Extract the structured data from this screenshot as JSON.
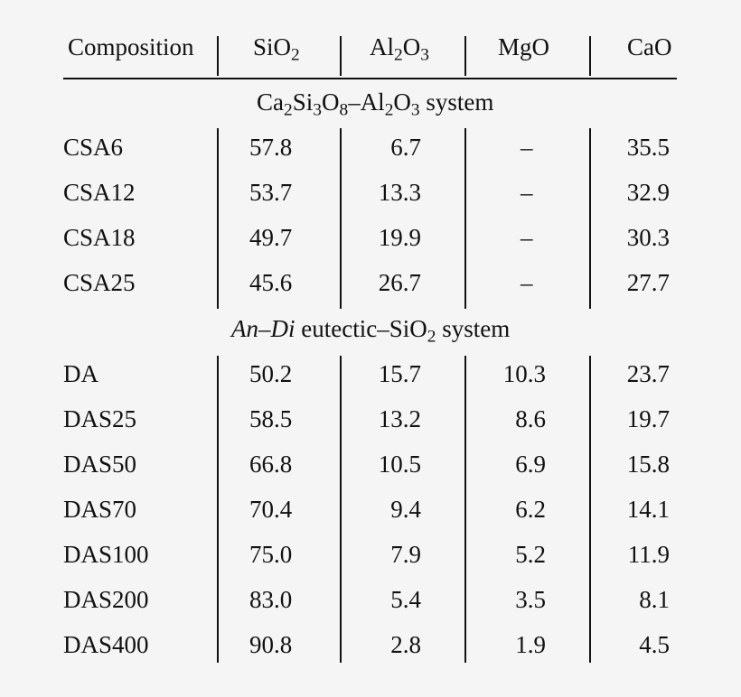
{
  "table": {
    "headers": {
      "composition": "Composition",
      "sio2": {
        "main": "SiO",
        "sub": "2"
      },
      "al2o3": {
        "a": "Al",
        "s1": "2",
        "b": "O",
        "s2": "3"
      },
      "mgo": "MgO",
      "cao": "CaO"
    },
    "section1": {
      "p1": "Ca",
      "s1": "2",
      "p2": "Si",
      "s2": "3",
      "p3": "O",
      "s3": "8",
      "p4": "–Al",
      "s4": "2",
      "p5": "O",
      "s5": "3",
      "p6": " system"
    },
    "section2": {
      "an": "An",
      "dash": "–",
      "di": "Di",
      "mid": " eutectic–SiO",
      "s1": "2",
      "end": " system"
    },
    "rows": [
      {
        "name": "CSA6",
        "sio2": "57.8",
        "al2o3": "6.7",
        "mgo": "–",
        "cao": "35.5"
      },
      {
        "name": "CSA12",
        "sio2": "53.7",
        "al2o3": "13.3",
        "mgo": "–",
        "cao": "32.9"
      },
      {
        "name": "CSA18",
        "sio2": "49.7",
        "al2o3": "19.9",
        "mgo": "–",
        "cao": "30.3"
      },
      {
        "name": "CSA25",
        "sio2": "45.6",
        "al2o3": "26.7",
        "mgo": "–",
        "cao": "27.7"
      },
      {
        "name": "DA",
        "sio2": "50.2",
        "al2o3": "15.7",
        "mgo": "10.3",
        "cao": "23.7"
      },
      {
        "name": "DAS25",
        "sio2": "58.5",
        "al2o3": "13.2",
        "mgo": "8.6",
        "cao": "19.7"
      },
      {
        "name": "DAS50",
        "sio2": "66.8",
        "al2o3": "10.5",
        "mgo": "6.9",
        "cao": "15.8"
      },
      {
        "name": "DAS70",
        "sio2": "70.4",
        "al2o3": "9.4",
        "mgo": "6.2",
        "cao": "14.1"
      },
      {
        "name": "DAS100",
        "sio2": "75.0",
        "al2o3": "7.9",
        "mgo": "5.2",
        "cao": "11.9"
      },
      {
        "name": "DAS200",
        "sio2": "83.0",
        "al2o3": "5.4",
        "mgo": "3.5",
        "cao": "8.1"
      },
      {
        "name": "DAS400",
        "sio2": "90.8",
        "al2o3": "2.8",
        "mgo": "1.9",
        "cao": "4.5"
      }
    ]
  }
}
